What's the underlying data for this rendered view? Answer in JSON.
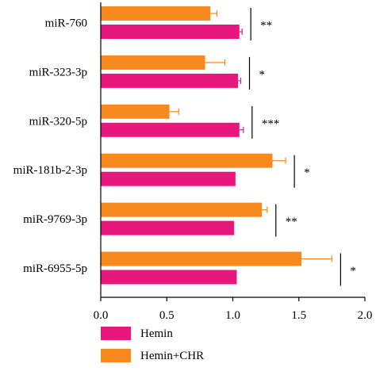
{
  "chart_data": {
    "type": "bar",
    "orientation": "horizontal",
    "categories": [
      "miR-760",
      "miR-323-3p",
      "miR-320-5p",
      "miR-181b-2-3p",
      "miR-9769-3p",
      "miR-6955-5p"
    ],
    "series": [
      {
        "name": "Hemin+CHR",
        "color": "#f7891f",
        "values": [
          0.83,
          0.79,
          0.52,
          1.3,
          1.22,
          1.52
        ],
        "errors": [
          0.05,
          0.15,
          0.07,
          0.1,
          0.04,
          0.23
        ]
      },
      {
        "name": "Hemin",
        "color": "#e8177d",
        "values": [
          1.05,
          1.04,
          1.05,
          1.02,
          1.01,
          1.03
        ],
        "errors": [
          0.02,
          0.02,
          0.03,
          0.0,
          0.0,
          0.0
        ]
      }
    ],
    "significance": [
      "**",
      "*",
      "***",
      "*",
      "**",
      "*"
    ],
    "xlim": [
      0.0,
      2.0
    ],
    "xticks": [
      "0.0",
      "0.5",
      "1.0",
      "1.5",
      "2.0"
    ],
    "legend": {
      "placement": "bottom-left",
      "items": [
        {
          "label": "Hemin",
          "color": "#e8177d"
        },
        {
          "label": "Hemin+CHR",
          "color": "#f7891f"
        }
      ]
    }
  }
}
